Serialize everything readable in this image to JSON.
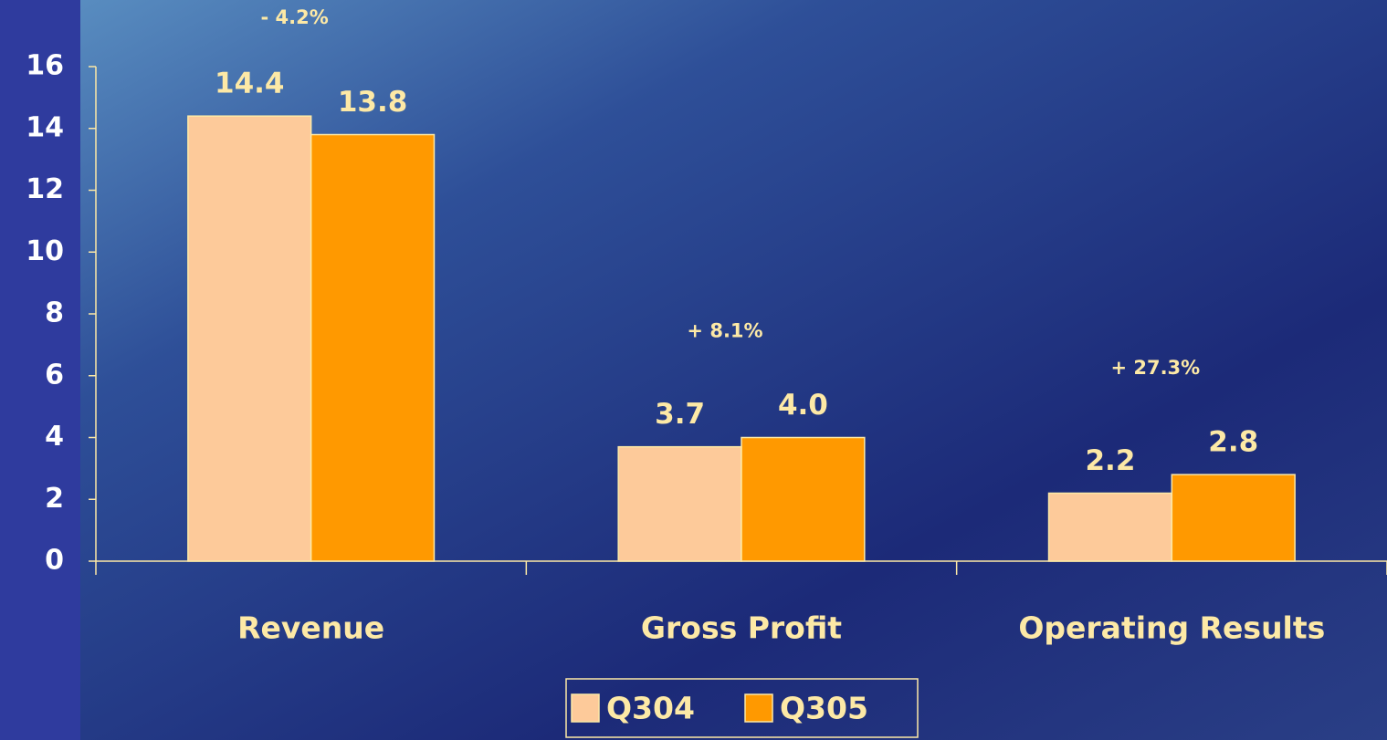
{
  "chart_data": {
    "type": "bar",
    "categories": [
      "Revenue",
      "Gross Profit",
      "Operating Results"
    ],
    "series": [
      {
        "name": "Q304",
        "color": "#fdca9a",
        "values": [
          14.4,
          3.7,
          2.2
        ]
      },
      {
        "name": "Q305",
        "color": "#ff9900",
        "values": [
          13.8,
          4,
          2.8
        ],
        "value_labels": [
          "13.8",
          "4.0",
          "2.8"
        ]
      }
    ],
    "annotations": [
      "- 4.2%",
      "+ 8.1%",
      "+ 27.3%"
    ],
    "ylim": [
      0,
      16
    ],
    "yticks": [
      0,
      2,
      4,
      6,
      8,
      10,
      12,
      14,
      16
    ],
    "legend": "bottom"
  }
}
